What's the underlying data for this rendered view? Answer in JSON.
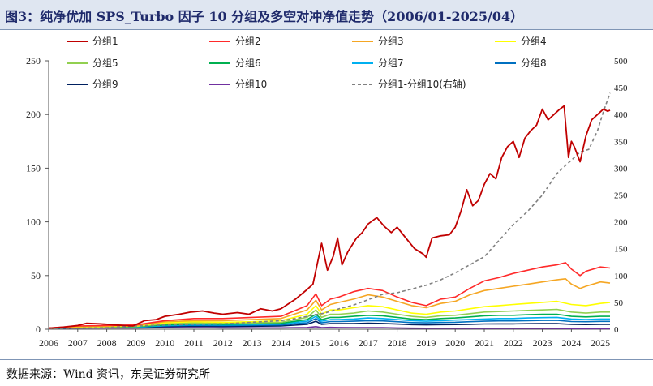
{
  "header": {
    "title": "图3：纯净优加 SPS_Turbo 因子 10 分组及多空对冲净值走势（2006/01-2025/04）"
  },
  "footer": {
    "source": "数据来源：Wind 资讯，东吴证券研究所"
  },
  "chart_data": {
    "type": "line",
    "title": "纯净优加 SPS_Turbo 因子 10 分组及多空对冲净值走势（2006/01-2025/04）",
    "x_ticks": [
      "2006",
      "2007",
      "2008",
      "2009",
      "2010",
      "2011",
      "2012",
      "2013",
      "2014",
      "2015",
      "2016",
      "2017",
      "2018",
      "2019",
      "2020",
      "2021",
      "2022",
      "2023",
      "2024",
      "2025"
    ],
    "x_range": [
      2006.0,
      2025.33
    ],
    "y_left": {
      "ticks": [
        0,
        50,
        100,
        150,
        200,
        250
      ],
      "range": [
        0,
        250
      ]
    },
    "y_right": {
      "ticks": [
        0,
        50,
        100,
        150,
        200,
        250,
        300,
        350,
        400,
        450,
        500
      ],
      "range": [
        0,
        500
      ]
    },
    "grid": false,
    "legend_position": "top",
    "series": [
      {
        "name": "分组1",
        "color": "#c00000",
        "axis": "left",
        "dash": false,
        "x": [
          2006.0,
          2006.5,
          2007.0,
          2007.3,
          2007.8,
          2008.3,
          2008.9,
          2009.3,
          2009.7,
          2010.0,
          2010.5,
          2010.9,
          2011.3,
          2011.7,
          2012.0,
          2012.5,
          2012.9,
          2013.3,
          2013.7,
          2014.0,
          2014.5,
          2014.9,
          2015.1,
          2015.4,
          2015.6,
          2015.8,
          2015.95,
          2016.1,
          2016.3,
          2016.6,
          2016.8,
          2017.0,
          2017.3,
          2017.55,
          2017.8,
          2018.0,
          2018.3,
          2018.6,
          2018.9,
          2019.0,
          2019.2,
          2019.5,
          2019.8,
          2020.0,
          2020.2,
          2020.4,
          2020.6,
          2020.8,
          2021.0,
          2021.2,
          2021.4,
          2021.6,
          2021.8,
          2022.0,
          2022.2,
          2022.4,
          2022.6,
          2022.8,
          2023.0,
          2023.2,
          2023.4,
          2023.6,
          2023.75,
          2023.9,
          2024.0,
          2024.1,
          2024.3,
          2024.5,
          2024.7,
          2024.9,
          2025.1,
          2025.25,
          2025.33
        ],
        "y": [
          1.0,
          2.0,
          3.5,
          5.5,
          5.0,
          4.0,
          3.0,
          8.0,
          9.0,
          12.0,
          14.0,
          16.0,
          17.0,
          15.0,
          14.0,
          15.5,
          14.0,
          19.0,
          17.0,
          19.0,
          28.0,
          37.0,
          42.0,
          80.0,
          55.0,
          68.0,
          85.0,
          60.0,
          72.0,
          85.0,
          90.0,
          98.0,
          104.0,
          96.0,
          90.0,
          95.0,
          85.0,
          75.0,
          70.0,
          67.0,
          85.0,
          87.0,
          88.0,
          95.0,
          110.0,
          130.0,
          115.0,
          120.0,
          135.0,
          145.0,
          140.0,
          160.0,
          170.0,
          175.0,
          160.0,
          178.0,
          185.0,
          190.0,
          205.0,
          195.0,
          200.0,
          205.0,
          208.0,
          160.0,
          175.0,
          170.0,
          156.0,
          180.0,
          195.0,
          200.0,
          205.0,
          203.0,
          204.0
        ]
      },
      {
        "name": "分组2",
        "color": "#ff2a2a",
        "axis": "left",
        "dash": false,
        "x": [
          2006.0,
          2007.0,
          2008.0,
          2009.0,
          2010.0,
          2011.0,
          2012.0,
          2013.0,
          2014.0,
          2014.9,
          2015.2,
          2015.4,
          2015.7,
          2016.0,
          2016.5,
          2017.0,
          2017.5,
          2018.0,
          2018.5,
          2019.0,
          2019.5,
          2020.0,
          2020.5,
          2021.0,
          2021.5,
          2022.0,
          2022.5,
          2023.0,
          2023.5,
          2023.8,
          2024.0,
          2024.3,
          2024.5,
          2025.0,
          2025.33
        ],
        "y": [
          1.0,
          3.0,
          3.5,
          4.0,
          8.0,
          10.0,
          10.0,
          11.0,
          12.0,
          22.0,
          33.0,
          22.0,
          28.0,
          30.0,
          35.0,
          38.0,
          36.0,
          30.0,
          25.0,
          22.0,
          28.0,
          30.0,
          38.0,
          45.0,
          48.0,
          52.0,
          55.0,
          58.0,
          60.0,
          62.0,
          56.0,
          50.0,
          54.0,
          58.0,
          57.0
        ]
      },
      {
        "name": "分组3",
        "color": "#f5a623",
        "axis": "left",
        "dash": false,
        "x": [
          2006.0,
          2007.0,
          2008.0,
          2009.0,
          2010.0,
          2011.0,
          2012.0,
          2013.0,
          2014.0,
          2014.9,
          2015.2,
          2015.4,
          2015.7,
          2016.0,
          2016.5,
          2017.0,
          2017.5,
          2018.0,
          2018.5,
          2019.0,
          2019.5,
          2020.0,
          2020.5,
          2021.0,
          2021.5,
          2022.0,
          2022.5,
          2023.0,
          2023.5,
          2023.8,
          2024.0,
          2024.3,
          2024.5,
          2025.0,
          2025.33
        ],
        "y": [
          1.0,
          2.5,
          3.0,
          3.5,
          7.0,
          8.0,
          8.0,
          9.0,
          10.0,
          18.0,
          27.0,
          18.0,
          23.0,
          25.0,
          28.0,
          32.0,
          30.0,
          26.0,
          22.0,
          20.0,
          24.0,
          26.0,
          32.0,
          36.0,
          38.0,
          40.0,
          42.0,
          44.0,
          46.0,
          47.0,
          42.0,
          38.0,
          40.0,
          44.0,
          43.0
        ]
      },
      {
        "name": "分组4",
        "color": "#ffff00",
        "axis": "left",
        "dash": false,
        "x": [
          2006.0,
          2007.0,
          2008.0,
          2009.0,
          2010.0,
          2011.0,
          2012.0,
          2013.0,
          2014.0,
          2014.9,
          2015.2,
          2015.4,
          2015.7,
          2016.0,
          2016.5,
          2017.0,
          2017.5,
          2018.0,
          2018.5,
          2019.0,
          2019.5,
          2020.0,
          2020.5,
          2021.0,
          2021.5,
          2022.0,
          2022.5,
          2023.0,
          2023.5,
          2024.0,
          2024.5,
          2025.0,
          2025.33
        ],
        "y": [
          1.0,
          2.2,
          2.6,
          3.0,
          6.0,
          7.0,
          6.5,
          7.0,
          8.0,
          14.0,
          22.0,
          14.0,
          18.0,
          18.0,
          20.0,
          22.0,
          21.0,
          18.0,
          15.0,
          14.0,
          16.0,
          17.0,
          19.0,
          21.0,
          22.0,
          23.0,
          24.0,
          25.0,
          26.0,
          23.0,
          22.0,
          24.0,
          25.0
        ]
      },
      {
        "name": "分组5",
        "color": "#92d050",
        "axis": "left",
        "dash": false,
        "x": [
          2006.0,
          2007.0,
          2008.0,
          2009.0,
          2010.0,
          2011.0,
          2012.0,
          2013.0,
          2014.0,
          2014.9,
          2015.2,
          2015.4,
          2015.7,
          2016.0,
          2016.5,
          2017.0,
          2017.5,
          2018.0,
          2018.5,
          2019.0,
          2019.5,
          2020.0,
          2020.5,
          2021.0,
          2021.5,
          2022.0,
          2022.5,
          2023.0,
          2023.5,
          2024.0,
          2024.5,
          2025.0,
          2025.33
        ],
        "y": [
          1.0,
          2.0,
          2.3,
          2.6,
          5.0,
          6.0,
          5.5,
          6.0,
          6.5,
          11.0,
          18.0,
          11.0,
          14.0,
          14.0,
          15.0,
          17.0,
          16.0,
          14.0,
          12.0,
          11.0,
          12.5,
          13.0,
          14.5,
          16.0,
          16.5,
          17.0,
          17.5,
          18.0,
          18.5,
          16.0,
          15.0,
          16.0,
          16.0
        ]
      },
      {
        "name": "分组6",
        "color": "#00b050",
        "axis": "left",
        "dash": false,
        "x": [
          2006.0,
          2007.0,
          2008.0,
          2009.0,
          2010.0,
          2011.0,
          2012.0,
          2013.0,
          2014.0,
          2014.9,
          2015.2,
          2015.4,
          2015.7,
          2016.0,
          2016.5,
          2017.0,
          2017.5,
          2018.0,
          2018.5,
          2019.0,
          2019.5,
          2020.0,
          2020.5,
          2021.0,
          2021.5,
          2022.0,
          2022.5,
          2023.0,
          2023.5,
          2024.0,
          2024.5,
          2025.0,
          2025.33
        ],
        "y": [
          1.0,
          1.8,
          2.0,
          2.3,
          4.0,
          5.0,
          4.5,
          5.0,
          5.5,
          9.0,
          14.0,
          9.0,
          11.0,
          11.0,
          12.0,
          13.0,
          12.5,
          11.0,
          9.5,
          9.0,
          10.0,
          10.5,
          11.5,
          12.5,
          13.0,
          13.0,
          13.5,
          14.0,
          14.0,
          12.0,
          11.5,
          12.0,
          12.0
        ]
      },
      {
        "name": "分组7",
        "color": "#00b0f0",
        "axis": "left",
        "dash": false,
        "x": [
          2006.0,
          2007.0,
          2008.0,
          2009.0,
          2010.0,
          2011.0,
          2012.0,
          2013.0,
          2014.0,
          2014.9,
          2015.2,
          2015.4,
          2015.7,
          2016.0,
          2016.5,
          2017.0,
          2017.5,
          2018.0,
          2018.5,
          2019.0,
          2019.5,
          2020.0,
          2020.5,
          2021.0,
          2021.5,
          2022.0,
          2022.5,
          2023.0,
          2023.5,
          2024.0,
          2024.5,
          2025.0,
          2025.33
        ],
        "y": [
          1.0,
          1.6,
          1.8,
          2.0,
          3.5,
          4.2,
          4.0,
          4.3,
          4.8,
          7.5,
          12.0,
          7.5,
          9.0,
          9.0,
          9.5,
          10.5,
          10.0,
          9.0,
          8.0,
          7.5,
          8.0,
          8.5,
          9.0,
          9.5,
          10.0,
          10.0,
          10.5,
          10.8,
          11.0,
          9.5,
          9.0,
          9.5,
          9.5
        ]
      },
      {
        "name": "分组8",
        "color": "#0070c0",
        "axis": "left",
        "dash": false,
        "x": [
          2006.0,
          2007.0,
          2008.0,
          2009.0,
          2010.0,
          2011.0,
          2012.0,
          2013.0,
          2014.0,
          2014.9,
          2015.2,
          2015.4,
          2015.7,
          2016.0,
          2016.5,
          2017.0,
          2017.5,
          2018.0,
          2018.5,
          2019.0,
          2019.5,
          2020.0,
          2020.5,
          2021.0,
          2021.5,
          2022.0,
          2022.5,
          2023.0,
          2023.5,
          2024.0,
          2024.5,
          2025.0,
          2025.33
        ],
        "y": [
          1.0,
          1.5,
          1.6,
          1.8,
          3.0,
          3.6,
          3.4,
          3.7,
          4.0,
          6.0,
          10.0,
          6.0,
          7.2,
          7.2,
          7.5,
          8.0,
          7.8,
          7.0,
          6.2,
          6.0,
          6.3,
          6.5,
          7.0,
          7.5,
          7.8,
          7.8,
          8.0,
          8.2,
          8.3,
          7.2,
          7.0,
          7.3,
          7.3
        ]
      },
      {
        "name": "分组9",
        "color": "#002060",
        "axis": "left",
        "dash": false,
        "x": [
          2006.0,
          2007.0,
          2008.0,
          2009.0,
          2010.0,
          2011.0,
          2012.0,
          2013.0,
          2014.0,
          2014.9,
          2015.2,
          2015.4,
          2015.7,
          2016.0,
          2016.5,
          2017.0,
          2017.5,
          2018.0,
          2018.5,
          2019.0,
          2019.5,
          2020.0,
          2020.5,
          2021.0,
          2021.5,
          2022.0,
          2022.5,
          2023.0,
          2023.5,
          2024.0,
          2024.5,
          2025.0,
          2025.33
        ],
        "y": [
          1.0,
          1.3,
          1.4,
          1.5,
          2.4,
          2.8,
          2.6,
          2.8,
          3.0,
          4.5,
          7.5,
          4.5,
          5.2,
          5.2,
          5.3,
          5.6,
          5.4,
          4.8,
          4.3,
          4.1,
          4.3,
          4.4,
          4.6,
          4.9,
          5.0,
          5.0,
          5.1,
          5.2,
          5.2,
          4.5,
          4.4,
          4.6,
          4.6
        ]
      },
      {
        "name": "分组10",
        "color": "#7030a0",
        "axis": "left",
        "dash": false,
        "x": [
          2006.0,
          2007.0,
          2008.0,
          2009.0,
          2010.0,
          2011.0,
          2012.0,
          2013.0,
          2014.0,
          2014.9,
          2015.2,
          2015.4,
          2015.7,
          2016.0,
          2016.5,
          2017.0,
          2017.5,
          2018.0,
          2018.5,
          2019.0,
          2019.5,
          2020.0,
          2020.5,
          2021.0,
          2021.5,
          2022.0,
          2022.5,
          2023.0,
          2023.5,
          2024.0,
          2024.5,
          2025.0,
          2025.33
        ],
        "y": [
          1.0,
          1.1,
          1.1,
          1.1,
          1.4,
          1.5,
          1.3,
          1.3,
          1.3,
          1.6,
          2.4,
          1.5,
          1.7,
          1.6,
          1.5,
          1.5,
          1.4,
          1.2,
          1.0,
          0.9,
          0.9,
          0.9,
          0.85,
          0.85,
          0.8,
          0.8,
          0.75,
          0.75,
          0.7,
          0.6,
          0.55,
          0.5,
          0.5
        ]
      },
      {
        "name": "分组1-分组10(右轴)",
        "color": "#808080",
        "axis": "right",
        "dash": true,
        "x": [
          2006.0,
          2007.0,
          2008.0,
          2009.0,
          2010.0,
          2011.0,
          2012.0,
          2013.0,
          2014.0,
          2014.5,
          2015.0,
          2015.5,
          2016.0,
          2016.5,
          2017.0,
          2017.5,
          2018.0,
          2018.5,
          2019.0,
          2019.5,
          2020.0,
          2020.5,
          2021.0,
          2021.5,
          2022.0,
          2022.5,
          2023.0,
          2023.5,
          2023.8,
          2024.0,
          2024.3,
          2024.6,
          2024.9,
          2025.1,
          2025.33
        ],
        "y": [
          1.0,
          2.0,
          3.0,
          6.0,
          8.0,
          9.0,
          10.0,
          13.0,
          16.0,
          20.0,
          25.0,
          30.0,
          38.0,
          45.0,
          55.0,
          65.0,
          68.0,
          75.0,
          82.0,
          92.0,
          105.0,
          120.0,
          135.0,
          165.0,
          195.0,
          220.0,
          250.0,
          290.0,
          305.0,
          315.0,
          330.0,
          335.0,
          370.0,
          405.0,
          440.0
        ]
      }
    ]
  }
}
